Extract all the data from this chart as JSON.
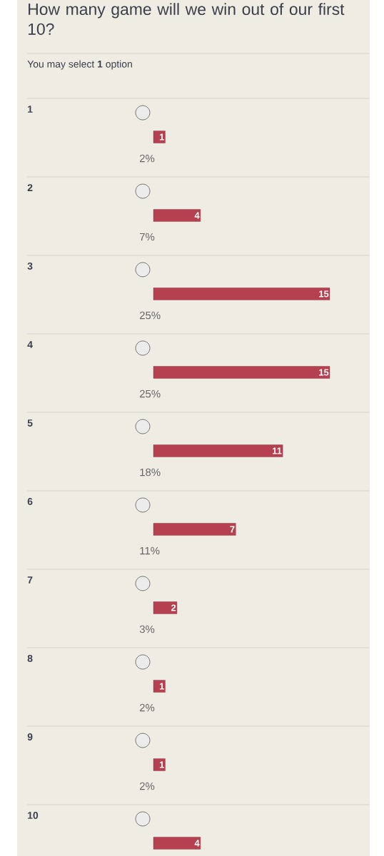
{
  "chart_data": {
    "type": "bar",
    "orientation": "horizontal",
    "title": "How many game will we win out of our first 10?",
    "subtitle": "You may select **1** option",
    "categories": [
      "1",
      "2",
      "3",
      "4",
      "5",
      "6",
      "7",
      "8",
      "9",
      "10"
    ],
    "values": [
      1,
      4,
      15,
      15,
      11,
      7,
      2,
      1,
      1,
      4
    ],
    "color": "#b5404f",
    "data_labels": true,
    "annotations": [
      "2%",
      "7%",
      "25%",
      "25%",
      "18%",
      "11%",
      "3%",
      "2%",
      "2%"
    ]
  }
}
